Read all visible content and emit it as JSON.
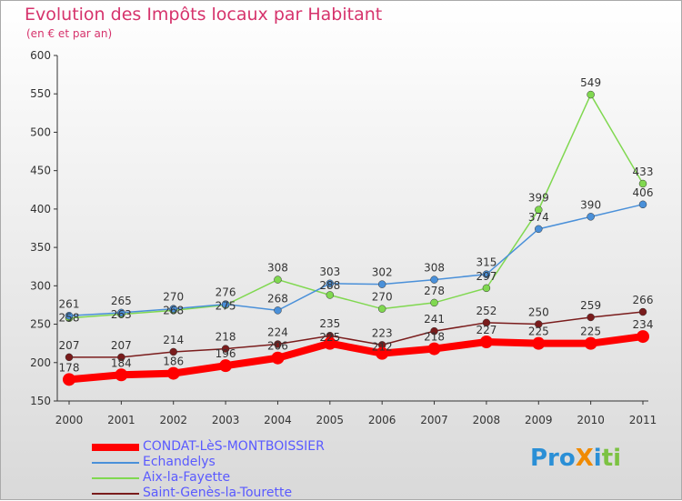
{
  "title": "Evolution des Impôts locaux par Habitant",
  "subtitle": "(en € et par an)",
  "logo": "ProXiti",
  "chart_data": {
    "type": "line",
    "x": [
      "2000",
      "2001",
      "2002",
      "2003",
      "2004",
      "2005",
      "2006",
      "2007",
      "2008",
      "2009",
      "2010",
      "2011"
    ],
    "ylim": [
      150,
      600
    ],
    "yticks": [
      150,
      200,
      250,
      300,
      350,
      400,
      450,
      500,
      550,
      600
    ],
    "grid": false,
    "legend_position": "bottom-left",
    "series": [
      {
        "name": "CONDAT-LèS-MONTBOISSIER",
        "color": "#ff0000",
        "values": [
          178,
          184,
          186,
          196,
          206,
          225,
          212,
          218,
          227,
          225,
          225,
          234
        ]
      },
      {
        "name": "Echandelys",
        "color": "#4a90d9",
        "values": [
          261,
          265,
          270,
          276,
          268,
          303,
          302,
          308,
          315,
          374,
          390,
          406
        ]
      },
      {
        "name": "Aix-la-Fayette",
        "color": "#80d850",
        "values": [
          258,
          263,
          268,
          275,
          308,
          288,
          270,
          278,
          297,
          399,
          549,
          433
        ]
      },
      {
        "name": "Saint-Genès-la-Tourette",
        "color": "#7a1c1c",
        "values": [
          207,
          207,
          214,
          218,
          224,
          235,
          223,
          241,
          252,
          250,
          259,
          266
        ]
      }
    ]
  }
}
